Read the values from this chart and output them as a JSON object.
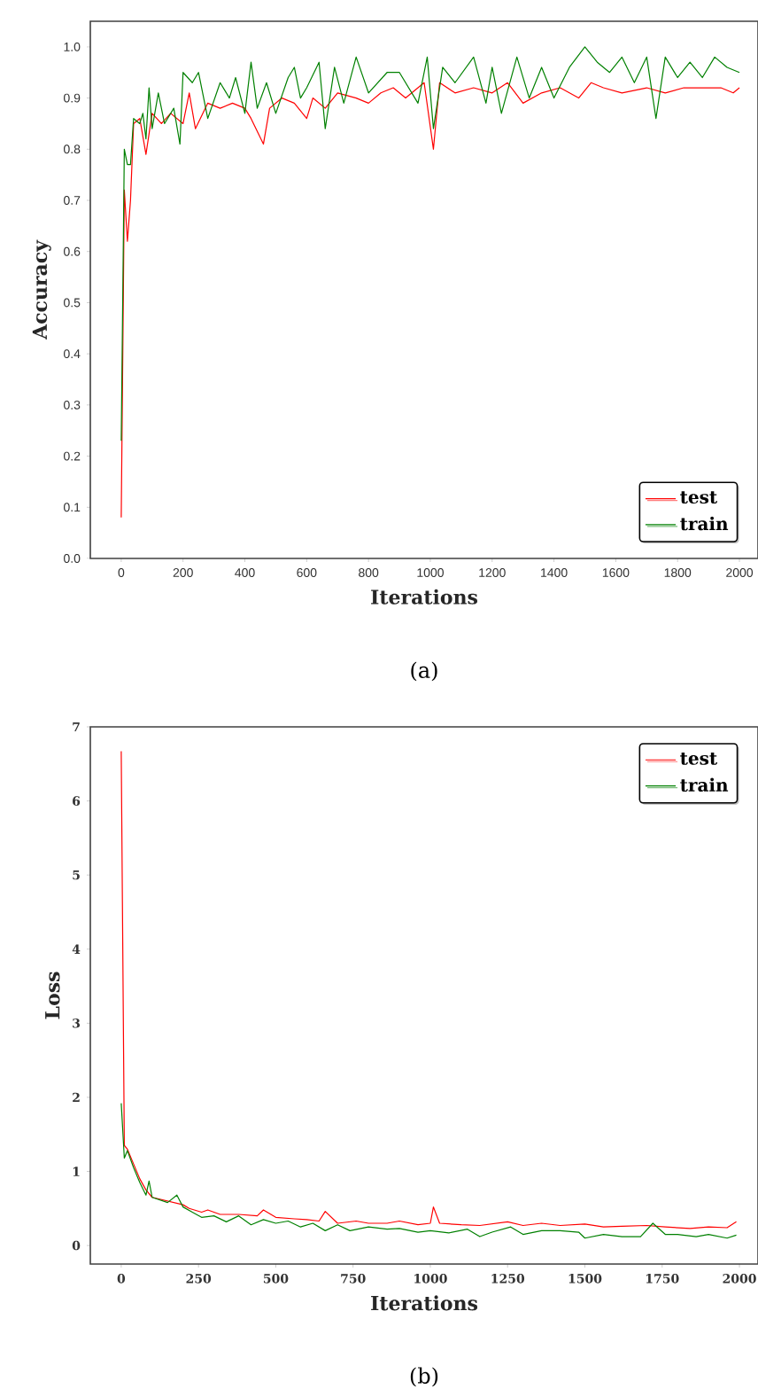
{
  "chart_data": [
    {
      "type": "line",
      "xlabel": "Iterations",
      "ylabel": "Accuracy",
      "annotations": [
        "(a)"
      ],
      "xlim": [
        -100,
        2060
      ],
      "ylim": [
        0,
        1.05
      ],
      "xticks": [
        0,
        200,
        400,
        600,
        800,
        1000,
        1200,
        1400,
        1600,
        1800,
        2000
      ],
      "yticks": [
        {
          "value": 0,
          "label": "0.0"
        },
        {
          "value": 0.1,
          "label": "0.1"
        },
        {
          "value": 0.2,
          "label": "0.2"
        },
        {
          "value": 0.3,
          "label": "0.3"
        },
        {
          "value": 0.4,
          "label": "0.4"
        },
        {
          "value": 0.5,
          "label": "0.5"
        },
        {
          "value": 0.6,
          "label": "0.6"
        },
        {
          "value": 0.7,
          "label": "0.7"
        },
        {
          "value": 0.8,
          "label": "0.8"
        },
        {
          "value": 0.9,
          "label": "0.9"
        },
        {
          "value": 1.0,
          "label": "1.0"
        }
      ],
      "grid": false,
      "legend": "bottom right",
      "marker": "none",
      "line_style": "solid",
      "series": [
        {
          "name": "test",
          "color": "#ff0000",
          "x": [
            0,
            10,
            20,
            30,
            40,
            60,
            80,
            100,
            130,
            160,
            200,
            220,
            240,
            280,
            320,
            360,
            400,
            420,
            460,
            480,
            520,
            560,
            600,
            620,
            660,
            700,
            760,
            800,
            840,
            880,
            920,
            980,
            1010,
            1030,
            1080,
            1140,
            1200,
            1250,
            1300,
            1360,
            1420,
            1480,
            1520,
            1560,
            1620,
            1700,
            1760,
            1820,
            1880,
            1940,
            1980,
            2000
          ],
          "values": [
            0.08,
            0.72,
            0.62,
            0.7,
            0.85,
            0.86,
            0.79,
            0.87,
            0.85,
            0.87,
            0.85,
            0.91,
            0.84,
            0.89,
            0.88,
            0.89,
            0.88,
            0.86,
            0.81,
            0.88,
            0.9,
            0.89,
            0.86,
            0.9,
            0.88,
            0.91,
            0.9,
            0.89,
            0.91,
            0.92,
            0.9,
            0.93,
            0.8,
            0.93,
            0.91,
            0.92,
            0.91,
            0.93,
            0.89,
            0.91,
            0.92,
            0.9,
            0.93,
            0.92,
            0.91,
            0.92,
            0.91,
            0.92,
            0.92,
            0.92,
            0.91,
            0.92
          ]
        },
        {
          "name": "train",
          "color": "#008000",
          "x": [
            0,
            10,
            20,
            30,
            40,
            60,
            70,
            80,
            90,
            100,
            120,
            140,
            170,
            190,
            200,
            230,
            250,
            280,
            320,
            350,
            370,
            400,
            420,
            440,
            470,
            500,
            540,
            560,
            580,
            600,
            640,
            660,
            690,
            720,
            760,
            800,
            860,
            900,
            960,
            990,
            1010,
            1040,
            1080,
            1140,
            1180,
            1200,
            1230,
            1280,
            1320,
            1360,
            1400,
            1450,
            1500,
            1540,
            1580,
            1620,
            1660,
            1700,
            1730,
            1760,
            1800,
            1840,
            1880,
            1920,
            1960,
            2000
          ],
          "values": [
            0.23,
            0.8,
            0.77,
            0.77,
            0.86,
            0.85,
            0.87,
            0.82,
            0.92,
            0.84,
            0.91,
            0.85,
            0.88,
            0.81,
            0.95,
            0.93,
            0.95,
            0.86,
            0.93,
            0.9,
            0.94,
            0.87,
            0.97,
            0.88,
            0.93,
            0.87,
            0.94,
            0.96,
            0.9,
            0.92,
            0.97,
            0.84,
            0.96,
            0.89,
            0.98,
            0.91,
            0.95,
            0.95,
            0.89,
            0.98,
            0.84,
            0.96,
            0.93,
            0.98,
            0.89,
            0.96,
            0.87,
            0.98,
            0.9,
            0.96,
            0.9,
            0.96,
            1.0,
            0.97,
            0.95,
            0.98,
            0.93,
            0.98,
            0.86,
            0.98,
            0.94,
            0.97,
            0.94,
            0.98,
            0.96,
            0.95
          ]
        }
      ]
    },
    {
      "type": "line",
      "xlabel": "Iterations",
      "ylabel": "Loss",
      "annotations": [
        "(b)"
      ],
      "xlim": [
        -100,
        2060
      ],
      "ylim": [
        -0.25,
        7
      ],
      "xticks": [
        0,
        250,
        500,
        750,
        1000,
        1250,
        1500,
        1750,
        2000
      ],
      "yticks": [
        0,
        1,
        2,
        3,
        4,
        5,
        6,
        7
      ],
      "grid": false,
      "legend": "top right",
      "marker": "none",
      "line_style": "solid",
      "series": [
        {
          "name": "test",
          "color": "#ff0000",
          "x": [
            0,
            10,
            20,
            40,
            60,
            80,
            100,
            150,
            200,
            220,
            260,
            280,
            320,
            380,
            440,
            460,
            500,
            560,
            600,
            640,
            660,
            700,
            760,
            800,
            860,
            900,
            960,
            1000,
            1010,
            1030,
            1100,
            1160,
            1250,
            1300,
            1360,
            1420,
            1500,
            1560,
            1620,
            1700,
            1760,
            1840,
            1900,
            1960,
            1990
          ],
          "values": [
            6.67,
            1.35,
            1.3,
            1.1,
            0.9,
            0.75,
            0.65,
            0.6,
            0.55,
            0.5,
            0.45,
            0.48,
            0.42,
            0.42,
            0.4,
            0.48,
            0.38,
            0.36,
            0.35,
            0.33,
            0.46,
            0.3,
            0.33,
            0.3,
            0.3,
            0.33,
            0.28,
            0.3,
            0.52,
            0.3,
            0.28,
            0.27,
            0.32,
            0.27,
            0.3,
            0.27,
            0.29,
            0.25,
            0.26,
            0.27,
            0.25,
            0.23,
            0.25,
            0.24,
            0.32
          ]
        },
        {
          "name": "train",
          "color": "#008000",
          "x": [
            0,
            10,
            20,
            40,
            60,
            80,
            90,
            100,
            150,
            180,
            200,
            230,
            260,
            300,
            340,
            380,
            420,
            460,
            500,
            540,
            580,
            620,
            660,
            700,
            740,
            800,
            860,
            900,
            960,
            1000,
            1060,
            1120,
            1160,
            1200,
            1260,
            1300,
            1360,
            1420,
            1480,
            1500,
            1560,
            1620,
            1680,
            1720,
            1760,
            1800,
            1860,
            1900,
            1960,
            1990
          ],
          "values": [
            1.92,
            1.18,
            1.28,
            1.05,
            0.85,
            0.68,
            0.87,
            0.65,
            0.58,
            0.68,
            0.52,
            0.45,
            0.38,
            0.4,
            0.32,
            0.4,
            0.28,
            0.35,
            0.3,
            0.33,
            0.25,
            0.3,
            0.2,
            0.28,
            0.2,
            0.25,
            0.22,
            0.23,
            0.18,
            0.2,
            0.17,
            0.22,
            0.12,
            0.18,
            0.25,
            0.15,
            0.2,
            0.2,
            0.18,
            0.1,
            0.15,
            0.12,
            0.12,
            0.3,
            0.15,
            0.15,
            0.12,
            0.15,
            0.1,
            0.14
          ]
        }
      ]
    }
  ]
}
